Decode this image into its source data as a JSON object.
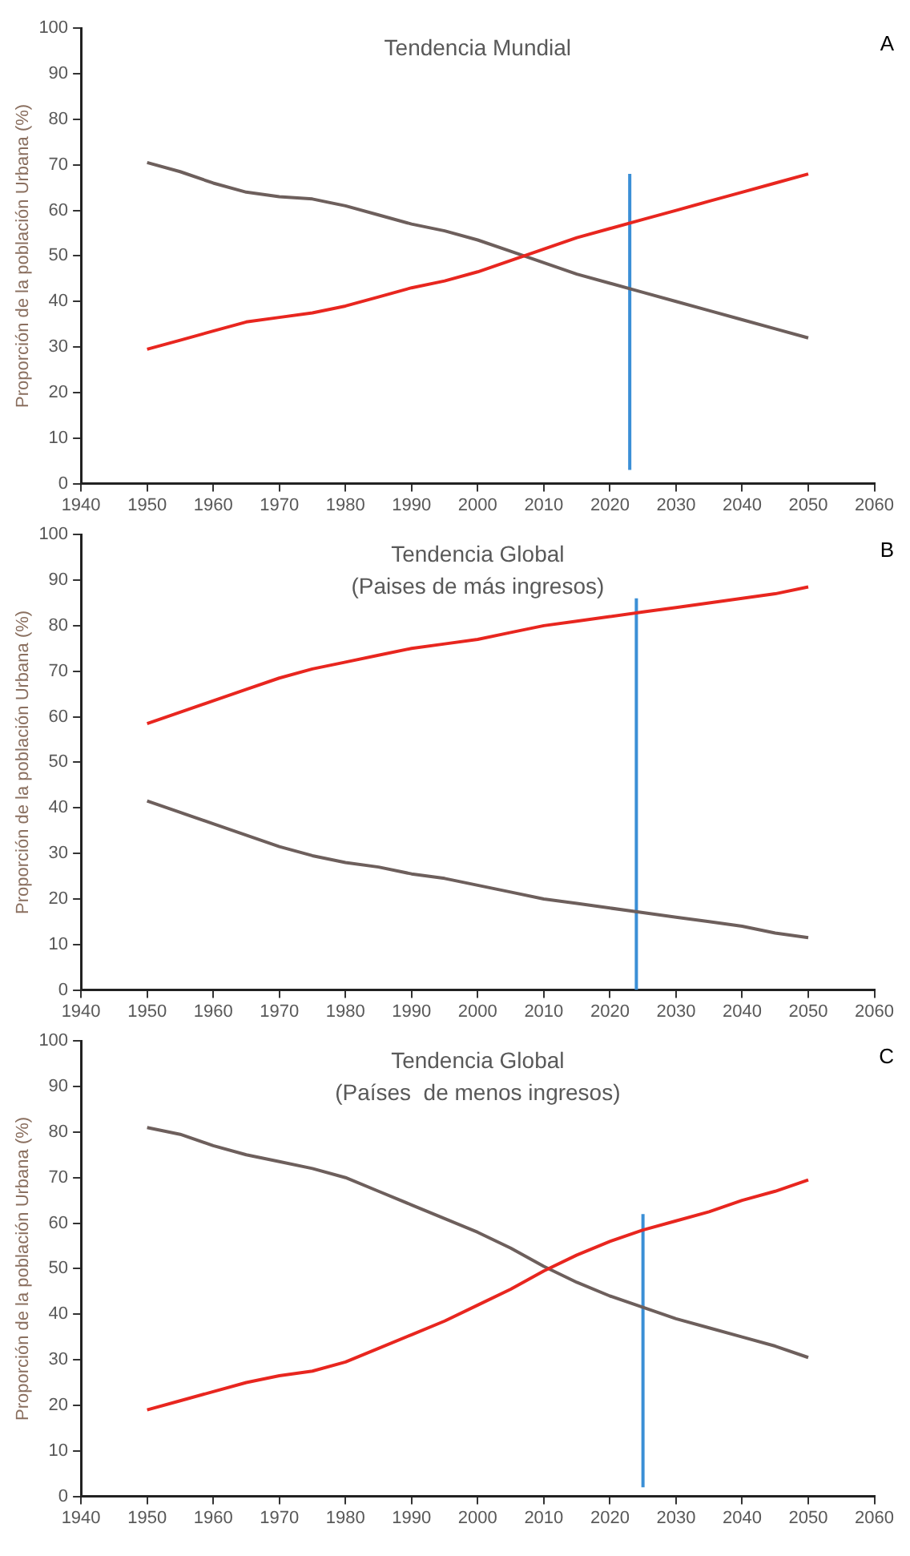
{
  "chart_data": [
    {
      "type": "line",
      "title": "Tendencia Mundial",
      "ylabel": "Proporción de la población Urbana (%)",
      "annotations": [
        "A"
      ],
      "x": [
        1950,
        1955,
        1960,
        1965,
        1970,
        1975,
        1980,
        1985,
        1990,
        1995,
        2000,
        2005,
        2010,
        2015,
        2020,
        2025,
        2030,
        2035,
        2040,
        2045,
        2050
      ],
      "series": [
        {
          "color": "#e8261f",
          "values": [
            29.5,
            31.5,
            33.5,
            35.5,
            36.5,
            37.5,
            39,
            41,
            43,
            44.5,
            46.5,
            49,
            51.5,
            54,
            56,
            58,
            60,
            62,
            64,
            66,
            68
          ]
        },
        {
          "color": "#6d5f5c",
          "values": [
            70.5,
            68.5,
            66,
            64,
            63,
            62.5,
            61,
            59,
            57,
            55.5,
            53.5,
            51,
            48.5,
            46,
            44,
            42,
            40,
            38,
            36,
            34,
            32
          ]
        },
        {
          "type": "line",
          "color": "#3b8fd6",
          "x": [
            2023,
            2023
          ],
          "values": [
            3,
            68
          ]
        }
      ],
      "xlim": [
        1940,
        2060
      ],
      "xticks": [
        1940,
        1950,
        1960,
        1970,
        1980,
        1990,
        2000,
        2010,
        2020,
        2030,
        2040,
        2050,
        2060
      ],
      "ylim": [
        0,
        100
      ],
      "yticks": [
        0,
        10,
        20,
        30,
        40,
        50,
        60,
        70,
        80,
        90,
        100
      ],
      "grid": false,
      "legend": false,
      "marker": "none",
      "line_style": "solid"
    },
    {
      "type": "line",
      "title": "Tendencia Global",
      "subtitle": "(Paises de más ingresos)",
      "ylabel": "Proporción de la población Urbana (%)",
      "annotations": [
        "B"
      ],
      "x": [
        1950,
        1955,
        1960,
        1965,
        1970,
        1975,
        1980,
        1985,
        1990,
        1995,
        2000,
        2005,
        2010,
        2015,
        2020,
        2025,
        2030,
        2035,
        2040,
        2045,
        2050
      ],
      "series": [
        {
          "color": "#e8261f",
          "values": [
            58.5,
            61,
            63.5,
            66,
            68.5,
            70.5,
            72,
            73.5,
            75,
            76,
            77,
            78.5,
            80,
            81,
            82,
            83,
            84,
            85,
            86,
            87,
            88.5
          ]
        },
        {
          "color": "#6d5f5c",
          "values": [
            41.5,
            39,
            36.5,
            34,
            31.5,
            29.5,
            28,
            27,
            25.5,
            24.5,
            23,
            21.5,
            20,
            19,
            18,
            17,
            16,
            15,
            14,
            12.5,
            11.5
          ]
        },
        {
          "type": "line",
          "color": "#3b8fd6",
          "x": [
            2024,
            2024
          ],
          "values": [
            0,
            86
          ]
        }
      ],
      "xlim": [
        1940,
        2060
      ],
      "xticks": [
        1940,
        1950,
        1960,
        1970,
        1980,
        1990,
        2000,
        2010,
        2020,
        2030,
        2040,
        2050,
        2060
      ],
      "ylim": [
        0,
        100
      ],
      "yticks": [
        0,
        10,
        20,
        30,
        40,
        50,
        60,
        70,
        80,
        90,
        100
      ],
      "grid": false,
      "legend": false,
      "marker": "none",
      "line_style": "solid"
    },
    {
      "type": "line",
      "title": "Tendencia Global",
      "subtitle": "(Países  de menos ingresos)",
      "ylabel": "Proporción de la población Urbana (%)",
      "annotations": [
        "C"
      ],
      "x": [
        1950,
        1955,
        1960,
        1965,
        1970,
        1975,
        1980,
        1985,
        1990,
        1995,
        2000,
        2005,
        2010,
        2015,
        2020,
        2025,
        2030,
        2035,
        2040,
        2045,
        2050
      ],
      "series": [
        {
          "color": "#e8261f",
          "values": [
            19,
            21,
            23,
            25,
            26.5,
            27.5,
            29.5,
            32.5,
            35.5,
            38.5,
            42,
            45.5,
            49.5,
            53,
            56,
            58.5,
            60.5,
            62.5,
            65,
            67,
            69.5
          ]
        },
        {
          "color": "#6d5f5c",
          "values": [
            81,
            79.5,
            77,
            75,
            73.5,
            72,
            70,
            67,
            64,
            61,
            58,
            54.5,
            50.5,
            47,
            44,
            41.5,
            39,
            37,
            35,
            33,
            30.5
          ]
        },
        {
          "type": "line",
          "color": "#3b8fd6",
          "x": [
            2025,
            2025
          ],
          "values": [
            2,
            62
          ]
        }
      ],
      "xlim": [
        1940,
        2060
      ],
      "xticks": [
        1940,
        1950,
        1960,
        1970,
        1980,
        1990,
        2000,
        2010,
        2020,
        2030,
        2040,
        2050,
        2060
      ],
      "ylim": [
        0,
        100
      ],
      "yticks": [
        0,
        10,
        20,
        30,
        40,
        50,
        60,
        70,
        80,
        90,
        100
      ],
      "grid": false,
      "legend": false,
      "marker": "none",
      "line_style": "solid"
    }
  ]
}
